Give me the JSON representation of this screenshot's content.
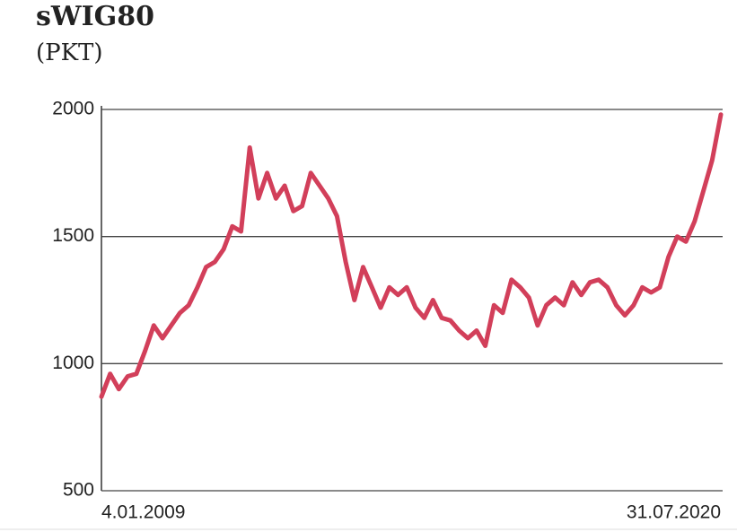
{
  "chart_data": {
    "type": "line",
    "title": "sWIG80",
    "subtitle": "(PKT)",
    "categories": [
      "4.01.2009",
      null,
      null,
      null,
      null,
      null,
      null,
      null,
      null,
      null,
      null,
      null,
      null,
      null,
      null,
      null,
      null,
      null,
      null,
      null,
      null,
      null,
      null,
      null,
      null,
      null,
      null,
      null,
      null,
      null,
      null,
      null,
      null,
      null,
      null,
      null,
      null,
      null,
      null,
      null,
      null,
      null,
      null,
      null,
      null,
      null,
      null,
      null,
      null,
      null,
      null,
      null,
      null,
      null,
      null,
      null,
      null,
      null,
      null,
      null,
      null,
      null,
      null,
      null,
      null,
      null,
      null,
      null,
      null,
      null,
      null,
      "31.07.2020"
    ],
    "series": [
      {
        "name": "sWIG80",
        "color": "#d23f5a",
        "values": [
          870,
          960,
          900,
          950,
          960,
          1050,
          1150,
          1100,
          1150,
          1200,
          1230,
          1300,
          1380,
          1400,
          1450,
          1540,
          1520,
          1850,
          1650,
          1750,
          1650,
          1700,
          1600,
          1620,
          1750,
          1700,
          1650,
          1580,
          1400,
          1250,
          1380,
          1300,
          1220,
          1300,
          1270,
          1300,
          1220,
          1180,
          1250,
          1180,
          1170,
          1130,
          1100,
          1130,
          1070,
          1230,
          1200,
          1330,
          1300,
          1260,
          1150,
          1230,
          1260,
          1230,
          1320,
          1270,
          1320,
          1330,
          1300,
          1230,
          1190,
          1230,
          1300,
          1280,
          1300,
          1420,
          1500,
          1480,
          1560,
          1680,
          1800,
          1980
        ]
      }
    ],
    "ylim": [
      500,
      2000
    ],
    "yticks": [
      500,
      1000,
      1500,
      2000
    ],
    "grid": true
  }
}
